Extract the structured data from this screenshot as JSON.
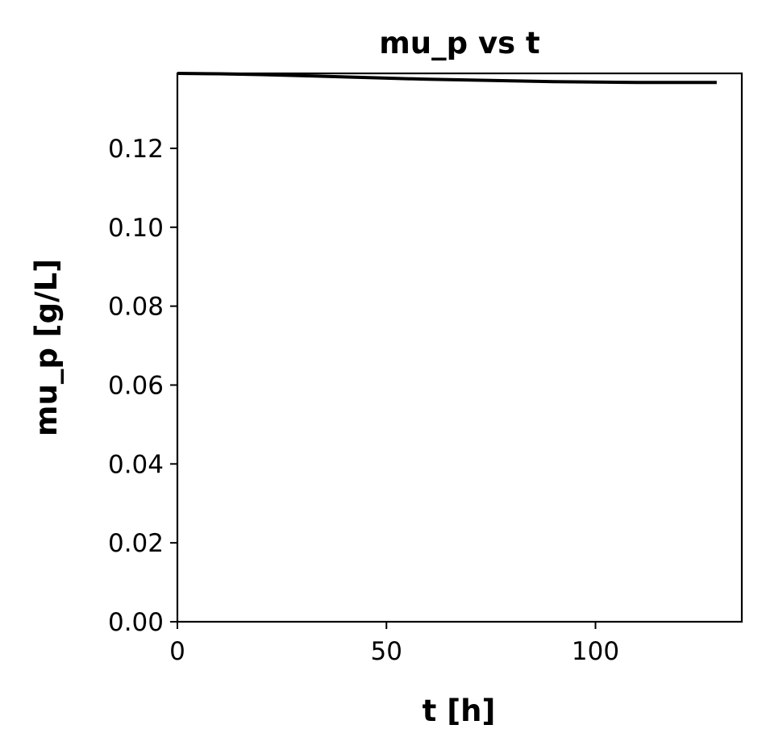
{
  "chart_data": {
    "type": "line",
    "title": "mu_p vs t",
    "xlabel": "t [h]",
    "ylabel": "mu_p [g/L]",
    "xlim": [
      0,
      135
    ],
    "ylim": [
      0,
      0.139
    ],
    "xticks": [
      0,
      50,
      100
    ],
    "xtick_labels": [
      "0",
      "50",
      "100"
    ],
    "yticks": [
      0.0,
      0.02,
      0.04,
      0.06,
      0.08,
      0.1,
      0.12
    ],
    "ytick_labels": [
      "0.00",
      "0.02",
      "0.04",
      "0.06",
      "0.08",
      "0.10",
      "0.12"
    ],
    "grid": false,
    "legend": "none",
    "series": [
      {
        "color": "#000000",
        "x": [
          0,
          10,
          20,
          30,
          40,
          50,
          60,
          70,
          80,
          90,
          100,
          110,
          120,
          129
        ],
        "y": [
          0.139,
          0.1389,
          0.1387,
          0.1384,
          0.1381,
          0.1378,
          0.1375,
          0.1373,
          0.1371,
          0.1369,
          0.1368,
          0.1367,
          0.1367,
          0.1367
        ]
      }
    ]
  }
}
